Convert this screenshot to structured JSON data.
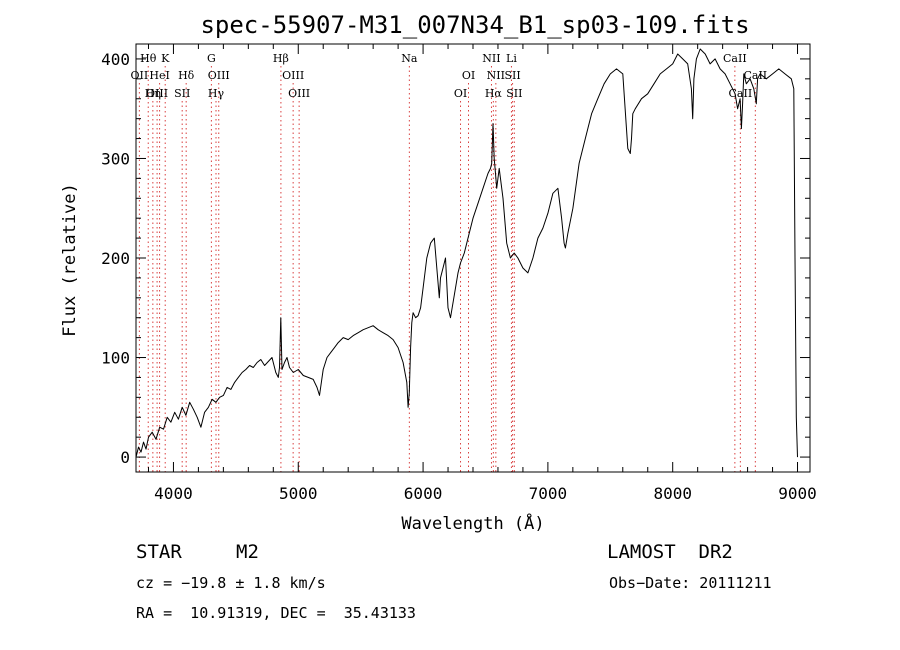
{
  "chart_data": {
    "type": "line",
    "title": "spec-55907-M31_007N34_B1_sp03-109.fits",
    "xlabel": "Wavelength (Å)",
    "ylabel": "Flux (relative)",
    "xlim": [
      3700,
      9100
    ],
    "ylim": [
      -15,
      415
    ],
    "x_ticks": [
      4000,
      5000,
      6000,
      7000,
      8000,
      9000
    ],
    "y_ticks": [
      0,
      100,
      200,
      300,
      400
    ],
    "x_minor_step": 200,
    "y_minor_step": 20,
    "spectrum": {
      "x": [
        3700,
        3720,
        3740,
        3760,
        3780,
        3800,
        3830,
        3860,
        3890,
        3920,
        3950,
        3980,
        4010,
        4040,
        4070,
        4100,
        4130,
        4160,
        4190,
        4220,
        4250,
        4280,
        4310,
        4340,
        4370,
        4400,
        4430,
        4460,
        4490,
        4520,
        4550,
        4580,
        4610,
        4640,
        4670,
        4700,
        4730,
        4760,
        4790,
        4820,
        4840,
        4850,
        4860,
        4870,
        4890,
        4910,
        4930,
        4960,
        5000,
        5040,
        5080,
        5120,
        5150,
        5170,
        5200,
        5230,
        5260,
        5290,
        5320,
        5360,
        5400,
        5440,
        5480,
        5520,
        5560,
        5600,
        5640,
        5680,
        5720,
        5760,
        5800,
        5840,
        5870,
        5880,
        5890,
        5900,
        5910,
        5920,
        5940,
        5960,
        5980,
        6000,
        6030,
        6060,
        6090,
        6110,
        6130,
        6140,
        6160,
        6180,
        6200,
        6220,
        6240,
        6260,
        6280,
        6300,
        6330,
        6360,
        6400,
        6440,
        6480,
        6520,
        6540,
        6550,
        6560,
        6570,
        6580,
        6590,
        6610,
        6640,
        6670,
        6700,
        6730,
        6760,
        6800,
        6840,
        6880,
        6920,
        6960,
        7000,
        7040,
        7080,
        7110,
        7130,
        7140,
        7160,
        7200,
        7250,
        7300,
        7350,
        7400,
        7450,
        7500,
        7550,
        7600,
        7640,
        7660,
        7670,
        7680,
        7700,
        7750,
        7800,
        7850,
        7900,
        7950,
        8000,
        8040,
        8080,
        8120,
        8150,
        8160,
        8170,
        8190,
        8220,
        8260,
        8300,
        8340,
        8380,
        8420,
        8460,
        8500,
        8520,
        8540,
        8550,
        8560,
        8570,
        8590,
        8620,
        8650,
        8670,
        8680,
        8700,
        8750,
        8800,
        8850,
        8900,
        8950,
        8970,
        8980,
        8990,
        9000
      ],
      "y": [
        0,
        10,
        5,
        15,
        8,
        20,
        25,
        18,
        30,
        28,
        40,
        35,
        45,
        38,
        50,
        42,
        55,
        48,
        40,
        30,
        45,
        50,
        58,
        55,
        60,
        62,
        70,
        68,
        75,
        80,
        85,
        88,
        92,
        90,
        95,
        98,
        92,
        96,
        100,
        85,
        80,
        90,
        140,
        88,
        95,
        100,
        90,
        85,
        88,
        82,
        80,
        78,
        70,
        62,
        88,
        100,
        105,
        110,
        115,
        120,
        118,
        122,
        125,
        128,
        130,
        132,
        128,
        125,
        122,
        118,
        110,
        95,
        75,
        50,
        65,
        110,
        135,
        145,
        140,
        142,
        150,
        170,
        200,
        215,
        220,
        190,
        160,
        180,
        190,
        200,
        150,
        140,
        155,
        170,
        185,
        195,
        205,
        220,
        240,
        255,
        270,
        285,
        290,
        295,
        335,
        300,
        285,
        270,
        290,
        260,
        215,
        200,
        205,
        200,
        190,
        185,
        200,
        220,
        230,
        245,
        265,
        270,
        240,
        215,
        210,
        225,
        250,
        295,
        320,
        345,
        360,
        375,
        385,
        390,
        385,
        310,
        305,
        320,
        345,
        350,
        360,
        365,
        375,
        385,
        390,
        395,
        405,
        400,
        395,
        370,
        340,
        380,
        400,
        410,
        405,
        395,
        400,
        390,
        385,
        375,
        365,
        350,
        360,
        330,
        355,
        385,
        375,
        380,
        370,
        355,
        380,
        385,
        380,
        385,
        390,
        385,
        380,
        370,
        200,
        40,
        0
      ]
    },
    "lines": [
      {
        "name": "Hθ",
        "x": 3798,
        "row": 1
      },
      {
        "name": "K",
        "x": 3934,
        "row": 1
      },
      {
        "name": "OII",
        "x": 3727,
        "row": 2
      },
      {
        "name": "HeI",
        "x": 3889,
        "row": 2
      },
      {
        "name": "Hδ",
        "x": 4102,
        "row": 2
      },
      {
        "name": "OIII",
        "x": 3869,
        "row": 3
      },
      {
        "name": "Hη",
        "x": 3835,
        "row": 3
      },
      {
        "name": "SII",
        "x": 4070,
        "row": 3
      },
      {
        "name": "G",
        "x": 4304,
        "row": 1
      },
      {
        "name": "OIII",
        "x": 4363,
        "row": 2
      },
      {
        "name": "Hγ",
        "x": 4341,
        "row": 3
      },
      {
        "name": "Hβ",
        "x": 4861,
        "row": 1
      },
      {
        "name": "OIII",
        "x": 4959,
        "row": 2
      },
      {
        "name": "OIII",
        "x": 5007,
        "row": 3
      },
      {
        "name": "Na",
        "x": 5890,
        "row": 1
      },
      {
        "name": "OI",
        "x": 6364,
        "row": 2
      },
      {
        "name": "OI",
        "x": 6300,
        "row": 3
      },
      {
        "name": "NII",
        "x": 6548,
        "row": 1
      },
      {
        "name": "Li",
        "x": 6708,
        "row": 1
      },
      {
        "name": "NII",
        "x": 6583,
        "row": 2
      },
      {
        "name": "SII",
        "x": 6717,
        "row": 2
      },
      {
        "name": "Hα",
        "x": 6563,
        "row": 3
      },
      {
        "name": "SII",
        "x": 6731,
        "row": 3
      },
      {
        "name": "CaII",
        "x": 8498,
        "row": 1
      },
      {
        "name": "CaII",
        "x": 8662,
        "row": 2
      },
      {
        "name": "CaII",
        "x": 8542,
        "row": 3
      }
    ],
    "grid": false,
    "legend": "none"
  },
  "info": {
    "object_class": "STAR",
    "subclass": "M2",
    "survey": "LAMOST  DR2",
    "cz": "cz = −19.8 ± 1.8 km/s",
    "obs_date": "Obs−Date: 20111211",
    "coords": "RA =  10.91319, DEC =  35.43133"
  },
  "colors": {
    "spectrum": "#000000",
    "line_markers": "#d94040",
    "axes": "#000000",
    "background": "#ffffff"
  }
}
